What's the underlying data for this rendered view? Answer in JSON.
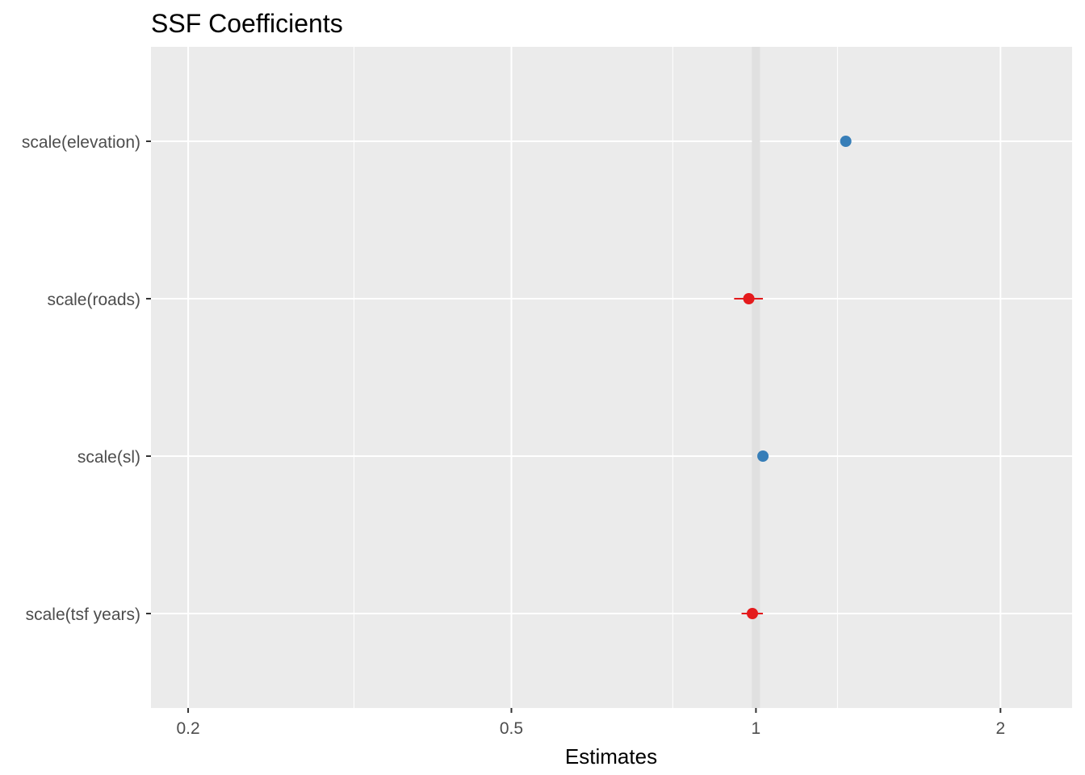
{
  "chart_data": {
    "type": "forest",
    "title": "SSF Coefficients",
    "xlabel": "Estimates",
    "ylabel": "",
    "x_scale": "log",
    "xlim": [
      0.18,
      2.45
    ],
    "x_ticks": [
      0.2,
      0.5,
      1,
      2
    ],
    "x_tick_labels": [
      "0.2",
      "0.5",
      "1",
      "2"
    ],
    "x_minor_gridlines": [
      0.32,
      0.79,
      1.26
    ],
    "reference_line": 1,
    "grid": true,
    "terms": [
      {
        "label": "scale(elevation)",
        "estimate": 1.29,
        "ci_low": 1.27,
        "ci_high": 1.31,
        "direction": "positive"
      },
      {
        "label": "scale(roads)",
        "estimate": 0.98,
        "ci_low": 0.94,
        "ci_high": 1.02,
        "direction": "negative"
      },
      {
        "label": "scale(sl)",
        "estimate": 1.02,
        "ci_low": 1.01,
        "ci_high": 1.03,
        "direction": "positive"
      },
      {
        "label": "scale(tsf years)",
        "estimate": 0.99,
        "ci_low": 0.96,
        "ci_high": 1.02,
        "direction": "negative"
      }
    ],
    "colors": {
      "positive": "#377eb8",
      "negative": "#e41a1c",
      "panel": "#ebebeb",
      "grid": "#ffffff",
      "reference": "#e0e0e0"
    }
  }
}
